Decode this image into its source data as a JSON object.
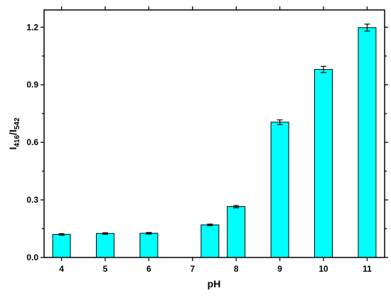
{
  "chart_data": {
    "type": "bar",
    "xlabel": "pH",
    "ylabel": {
      "base": "I",
      "sub1": "416",
      "slash": "/I",
      "sub2": "542"
    },
    "xlim": [
      3.6,
      11.4
    ],
    "ylim": [
      0,
      1.29
    ],
    "x_ticks": [
      4,
      5,
      6,
      7,
      8,
      9,
      10,
      11
    ],
    "y_ticks": [
      {
        "value": 0.0,
        "label": "0.0"
      },
      {
        "value": 0.3,
        "label": "0.3"
      },
      {
        "value": 0.6,
        "label": "0.6"
      },
      {
        "value": 0.9,
        "label": "0.9"
      },
      {
        "value": 1.2,
        "label": "1.2"
      }
    ],
    "bar_color": "#00ffff",
    "bars": [
      {
        "x": 4,
        "value": 0.12,
        "error": 0.004
      },
      {
        "x": 5,
        "value": 0.125,
        "error": 0.004
      },
      {
        "x": 6,
        "value": 0.126,
        "error": 0.004
      },
      {
        "x": 7.4,
        "value": 0.17,
        "error": 0.004
      },
      {
        "x": 8,
        "value": 0.265,
        "error": 0.006
      },
      {
        "x": 9,
        "value": 0.705,
        "error": 0.012
      },
      {
        "x": 10,
        "value": 0.98,
        "error": 0.016
      },
      {
        "x": 11,
        "value": 1.198,
        "error": 0.018
      }
    ],
    "grid": false,
    "legend": "none"
  }
}
